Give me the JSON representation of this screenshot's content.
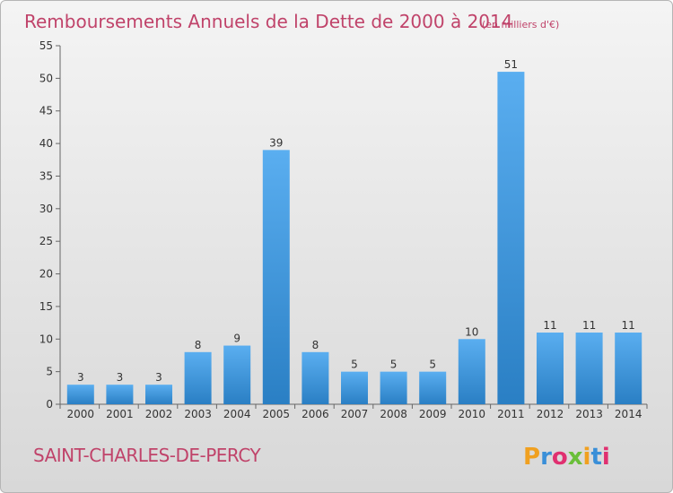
{
  "header": {
    "title": "Remboursements Annuels de la Dette de 2000 à 2014",
    "unit": "(en milliers d'€)"
  },
  "footer": {
    "town": "SAINT-CHARLES-DE-PERCY",
    "logo": "Proxiti"
  },
  "colors": {
    "title": "#c0436a",
    "bar_top": "#5aaef0",
    "bar_bottom": "#2a7fc4",
    "logo_letters": [
      "#f0a020",
      "#3a8fd8",
      "#e03070",
      "#6abf3a",
      "#f0a020",
      "#3a8fd8",
      "#e03070"
    ]
  },
  "chart_data": {
    "type": "bar",
    "title": "Remboursements Annuels de la Dette de 2000 à 2014",
    "xlabel": "",
    "ylabel": "",
    "categories": [
      "2000",
      "2001",
      "2002",
      "2003",
      "2004",
      "2005",
      "2006",
      "2007",
      "2008",
      "2009",
      "2010",
      "2011",
      "2012",
      "2013",
      "2014"
    ],
    "values": [
      3,
      3,
      3,
      8,
      9,
      39,
      8,
      5,
      5,
      5,
      10,
      51,
      11,
      11,
      11
    ],
    "ylim": [
      0,
      55
    ],
    "yticks": [
      0,
      5,
      10,
      15,
      20,
      25,
      30,
      35,
      40,
      45,
      50,
      55
    ],
    "grid": false,
    "legend": "none"
  }
}
